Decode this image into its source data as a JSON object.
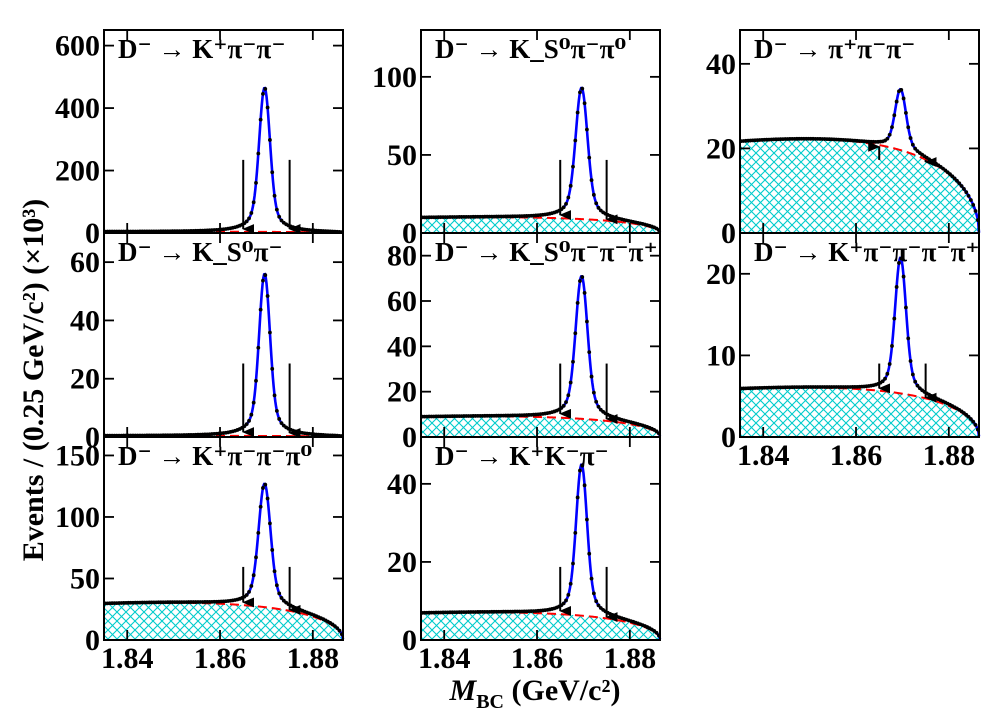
{
  "figure": {
    "y_axis_title": "Events / (0.25 GeV/c²) (×10³)",
    "x_axis_title": "M_BC (GeV/c²)",
    "x_axis_title_main": "M",
    "x_axis_title_sub": "BC",
    "x_axis_title_rest": " (GeV/c²)"
  },
  "colors": {
    "fit": "#0000ff",
    "data": "#000000",
    "background": "#ff0000",
    "hatch": "#00cccc",
    "arrow": "#000000"
  },
  "chart_data": [
    {
      "type": "line",
      "label": "D⁻ → K⁺π⁻π⁻",
      "xlim": [
        1.835,
        1.8865
      ],
      "ylim": [
        0,
        650
      ],
      "yticks": [
        0,
        200,
        400,
        600
      ],
      "xticks": [
        1.84,
        1.86,
        1.88
      ],
      "x_tick_labels": [],
      "peak": 465,
      "bkg": 4,
      "width": 0.0011,
      "hatched": false,
      "signal_window": [
        1.865,
        1.875
      ]
    },
    {
      "type": "line",
      "label": "D⁻ → K_S⁰π⁻",
      "xlim": [
        1.835,
        1.8865
      ],
      "ylim": [
        0,
        70
      ],
      "yticks": [
        0,
        20,
        40,
        60
      ],
      "xticks": [
        1.84,
        1.86,
        1.88
      ],
      "x_tick_labels": [],
      "peak": 56,
      "bkg": 0.4,
      "width": 0.0011,
      "hatched": false,
      "signal_window": [
        1.865,
        1.875
      ]
    },
    {
      "type": "line",
      "label": "D⁻ → K⁺π⁻π⁻π⁰",
      "xlim": [
        1.835,
        1.8865
      ],
      "ylim": [
        0,
        165
      ],
      "yticks": [
        0,
        50,
        100,
        150
      ],
      "xticks": [
        1.84,
        1.86,
        1.88
      ],
      "x_tick_labels": [
        "1.84",
        "1.86",
        "1.88"
      ],
      "peak": 127,
      "bkg": 30,
      "width": 0.0012,
      "hatched": true,
      "signal_window": [
        1.865,
        1.875
      ]
    },
    {
      "type": "line",
      "label": "D⁻ → K_S⁰π⁻π⁰",
      "xlim": [
        1.835,
        1.8865
      ],
      "ylim": [
        0,
        130
      ],
      "yticks": [
        0,
        50,
        100
      ],
      "xticks": [
        1.84,
        1.86,
        1.88
      ],
      "x_tick_labels": [],
      "peak": 93,
      "bkg": 10,
      "width": 0.0012,
      "hatched": true,
      "signal_window": [
        1.865,
        1.875
      ]
    },
    {
      "type": "line",
      "label": "D⁻ → K_S⁰π⁻π⁻π⁺",
      "xlim": [
        1.835,
        1.8865
      ],
      "ylim": [
        0,
        90
      ],
      "yticks": [
        0,
        20,
        40,
        60,
        80
      ],
      "xticks": [
        1.84,
        1.86,
        1.88
      ],
      "x_tick_labels": [],
      "peak": 71,
      "bkg": 9,
      "width": 0.0012,
      "hatched": true,
      "signal_window": [
        1.865,
        1.875
      ]
    },
    {
      "type": "line",
      "label": "D⁻ → K⁺K⁻π⁻",
      "xlim": [
        1.835,
        1.8865
      ],
      "ylim": [
        0,
        52
      ],
      "yticks": [
        0,
        20,
        40
      ],
      "xticks": [
        1.84,
        1.86,
        1.88
      ],
      "x_tick_labels": [
        "1.84",
        "1.86",
        "1.88"
      ],
      "peak": 45,
      "bkg": 7,
      "width": 0.0011,
      "hatched": true,
      "signal_window": [
        1.865,
        1.875
      ]
    },
    {
      "type": "line",
      "label": "D⁻ → π⁺π⁻π⁻",
      "xlim": [
        1.835,
        1.8865
      ],
      "ylim": [
        0,
        48
      ],
      "yticks": [
        0,
        20,
        40
      ],
      "xticks": [
        1.84,
        1.86,
        1.88
      ],
      "x_tick_labels": [],
      "peak": 34,
      "bkg": 22,
      "width": 0.0011,
      "hatched": true,
      "signal_window": [
        1.865,
        1.875
      ]
    },
    {
      "type": "line",
      "label": "D⁻ → K⁺π⁻π⁻π⁻π⁺",
      "xlim": [
        1.835,
        1.8865
      ],
      "ylim": [
        0,
        25
      ],
      "yticks": [
        0,
        10,
        20
      ],
      "xticks": [
        1.84,
        1.86,
        1.88
      ],
      "x_tick_labels": [
        "1.84",
        "1.86",
        "1.88"
      ],
      "peak": 22,
      "bkg": 6,
      "width": 0.0011,
      "hatched": true,
      "signal_window": [
        1.865,
        1.875
      ]
    }
  ]
}
